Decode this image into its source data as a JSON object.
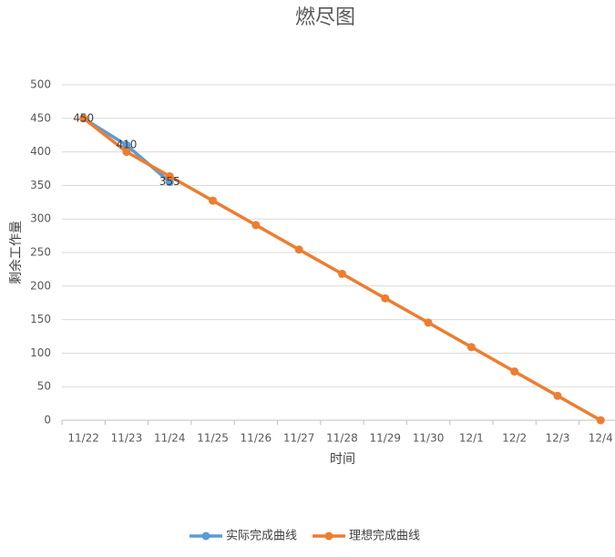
{
  "chart_data": {
    "type": "line",
    "title": "燃尽图",
    "x_label": "时间",
    "y_label": "剩余工作量",
    "categories": [
      "11/22",
      "11/23",
      "11/24",
      "11/25",
      "11/26",
      "11/27",
      "11/28",
      "11/29",
      "11/30",
      "12/1",
      "12/2",
      "12/3",
      "12/4"
    ],
    "series": [
      {
        "name": "实际完成曲线",
        "color": "#5b9bd5",
        "values": [
          450,
          410,
          355,
          null,
          null,
          null,
          null,
          null,
          null,
          null,
          null,
          null,
          null
        ],
        "data_labels": true
      },
      {
        "name": "理想完成曲线",
        "color": "#ed7d31",
        "values": [
          450,
          400,
          363.6,
          327.3,
          290.9,
          254.5,
          218.2,
          181.8,
          145.5,
          109.1,
          72.7,
          36.4,
          0
        ],
        "data_labels": false
      }
    ],
    "ylim": [
      0,
      500
    ],
    "yticks": [
      0,
      50,
      100,
      150,
      200,
      250,
      300,
      350,
      400,
      450,
      500
    ],
    "grid": true,
    "legend": "bottom"
  }
}
